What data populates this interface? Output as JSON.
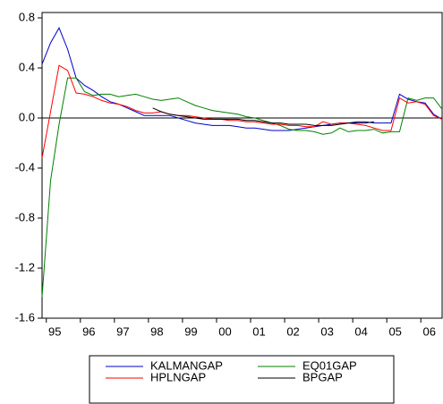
{
  "chart_data": {
    "type": "line",
    "categories": [
      null,
      "95",
      null,
      null,
      null,
      "96",
      null,
      null,
      null,
      "97",
      null,
      null,
      null,
      "98",
      null,
      null,
      null,
      "99",
      null,
      null,
      null,
      "00",
      null,
      null,
      null,
      "01",
      null,
      null,
      null,
      "02",
      null,
      null,
      null,
      "03",
      null,
      null,
      null,
      "04",
      null,
      null,
      null,
      "05",
      null,
      null,
      null,
      "06",
      null,
      null
    ],
    "series": [
      {
        "name": "KALMANGAP",
        "color": "#0000cc",
        "values": [
          0.43,
          0.6,
          0.72,
          0.55,
          0.32,
          0.26,
          0.22,
          0.17,
          0.13,
          0.11,
          0.08,
          0.05,
          0.02,
          0.02,
          0.02,
          0.02,
          0.0,
          -0.02,
          -0.04,
          -0.05,
          -0.06,
          -0.06,
          -0.06,
          -0.07,
          -0.08,
          -0.08,
          -0.09,
          -0.1,
          -0.1,
          -0.1,
          -0.09,
          -0.08,
          -0.07,
          -0.06,
          -0.05,
          -0.04,
          -0.04,
          -0.03,
          -0.03,
          -0.04,
          -0.04,
          -0.04,
          0.19,
          0.15,
          0.13,
          0.12,
          0.03,
          -0.01
        ]
      },
      {
        "name": "EQ01GAP",
        "color": "#008000",
        "values": [
          -1.43,
          -0.5,
          -0.05,
          0.32,
          0.32,
          0.21,
          0.18,
          0.19,
          0.19,
          0.17,
          0.18,
          0.19,
          0.17,
          0.15,
          0.14,
          0.15,
          0.16,
          0.13,
          0.1,
          0.08,
          0.06,
          0.05,
          0.04,
          0.03,
          0.01,
          0.0,
          -0.02,
          -0.04,
          -0.06,
          -0.09,
          -0.1,
          -0.1,
          -0.11,
          -0.13,
          -0.12,
          -0.08,
          -0.11,
          -0.1,
          -0.1,
          -0.09,
          -0.12,
          -0.11,
          -0.11,
          0.16,
          0.14,
          0.16,
          0.16,
          0.07
        ]
      },
      {
        "name": "HPLNGAP",
        "color": "#ff0000",
        "values": [
          -0.32,
          0.05,
          0.42,
          0.38,
          0.2,
          0.19,
          0.17,
          0.14,
          0.12,
          0.11,
          0.09,
          0.06,
          0.04,
          0.04,
          0.05,
          0.03,
          0.02,
          0.02,
          0.01,
          0.0,
          -0.01,
          -0.01,
          -0.02,
          -0.02,
          -0.03,
          -0.03,
          -0.04,
          -0.05,
          -0.05,
          -0.06,
          -0.06,
          -0.07,
          -0.07,
          -0.03,
          -0.05,
          -0.04,
          -0.04,
          -0.05,
          -0.06,
          -0.08,
          -0.1,
          -0.1,
          0.16,
          0.12,
          0.13,
          0.11,
          0.02,
          -0.01
        ]
      },
      {
        "name": "BPGAP",
        "color": "#000000",
        "values": [
          null,
          null,
          null,
          null,
          null,
          null,
          null,
          null,
          null,
          null,
          null,
          null,
          null,
          0.08,
          0.05,
          0.03,
          0.02,
          0.01,
          0.0,
          -0.01,
          -0.01,
          -0.01,
          -0.01,
          -0.01,
          -0.02,
          -0.02,
          -0.03,
          -0.04,
          -0.04,
          -0.05,
          -0.05,
          -0.05,
          -0.06,
          -0.06,
          -0.06,
          -0.05,
          -0.04,
          -0.04,
          -0.04,
          -0.03,
          null,
          null,
          null,
          null,
          null,
          null,
          null,
          null
        ]
      }
    ],
    "ylim": [
      -1.6,
      0.8
    ],
    "yticks": [
      {
        "value": -1.6,
        "label": "-1.6"
      },
      {
        "value": -1.2,
        "label": "-1.2"
      },
      {
        "value": -0.8,
        "label": "-0.8"
      },
      {
        "value": -0.4,
        "label": "-0.4"
      },
      {
        "value": 0,
        "label": "0.0"
      },
      {
        "value": 0.4,
        "label": "0.4"
      },
      {
        "value": 0.8,
        "label": "0.8"
      }
    ],
    "zero_line": true,
    "legend": "bottom"
  }
}
